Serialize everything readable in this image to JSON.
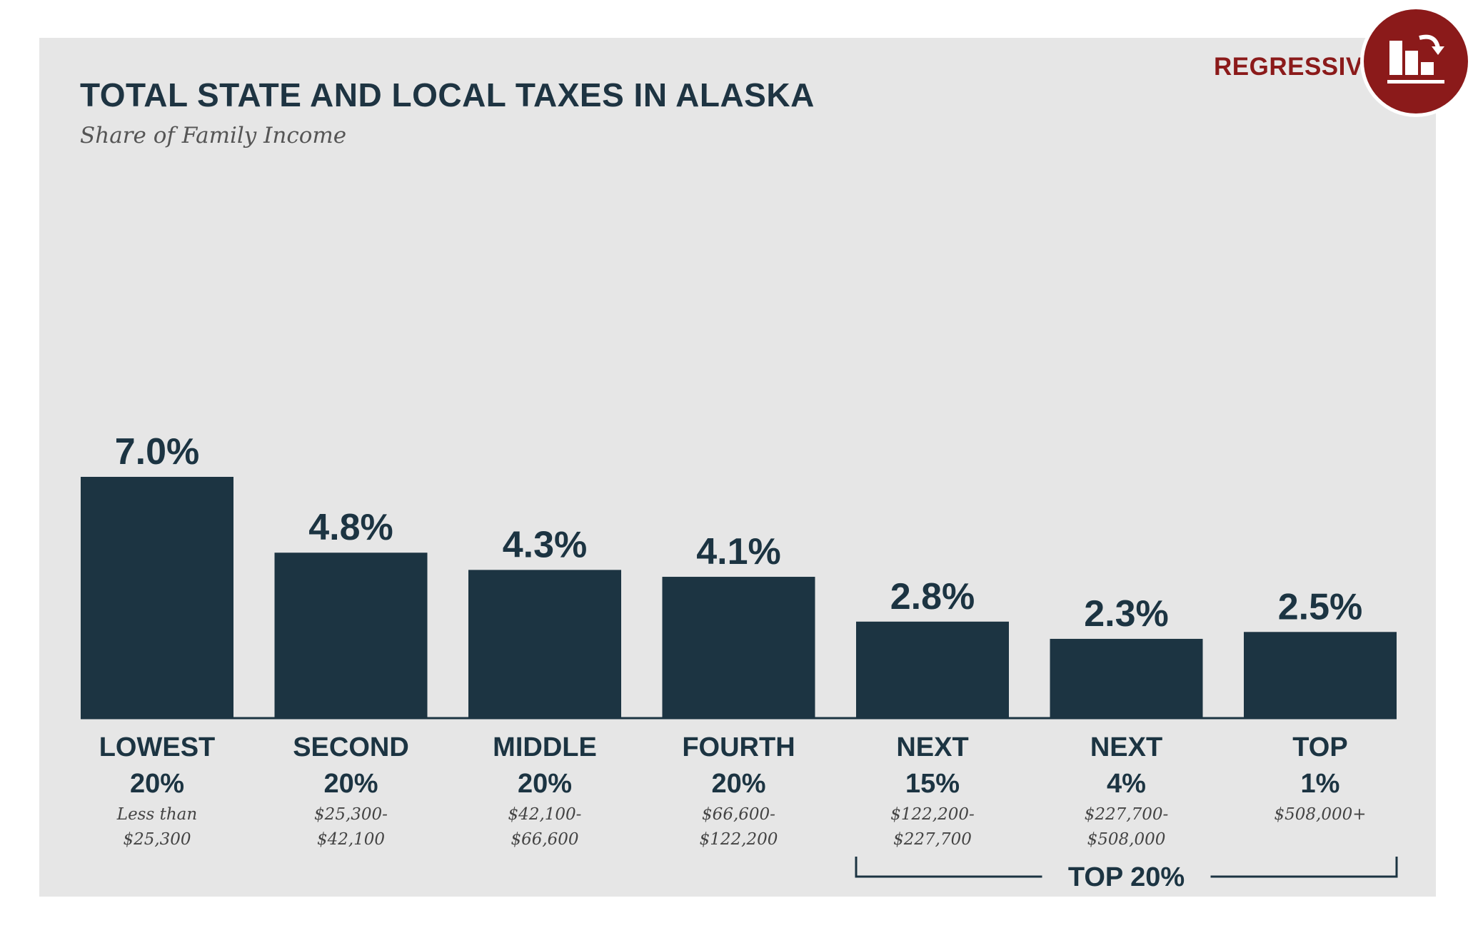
{
  "badge": {
    "label": "REGRESSIVE",
    "icon": "regressive-chart-icon",
    "color": "#8b1a1a"
  },
  "colors": {
    "bar": "#1c3442",
    "panel": "#e6e6e6",
    "accent": "#8b1a1a"
  },
  "chart_data": {
    "type": "bar",
    "title": "TOTAL STATE AND LOCAL TAXES IN ALASKA",
    "subtitle": "Share of Family Income",
    "categories": [
      {
        "name": [
          "LOWEST",
          "20%"
        ],
        "range": [
          "Less than",
          "$25,300"
        ]
      },
      {
        "name": [
          "SECOND",
          "20%"
        ],
        "range": [
          "$25,300-",
          "$42,100"
        ]
      },
      {
        "name": [
          "MIDDLE",
          "20%"
        ],
        "range": [
          "$42,100-",
          "$66,600"
        ]
      },
      {
        "name": [
          "FOURTH",
          "20%"
        ],
        "range": [
          "$66,600-",
          "$122,200"
        ]
      },
      {
        "name": [
          "NEXT",
          "15%"
        ],
        "range": [
          "$122,200-",
          "$227,700"
        ]
      },
      {
        "name": [
          "NEXT",
          "4%"
        ],
        "range": [
          "$227,700-",
          "$508,000"
        ]
      },
      {
        "name": [
          "TOP",
          "1%"
        ],
        "range": [
          "$508,000+"
        ]
      }
    ],
    "values": [
      7.0,
      4.8,
      4.3,
      4.1,
      2.8,
      2.3,
      2.5
    ],
    "value_labels": [
      "7.0%",
      "4.8%",
      "4.3%",
      "4.1%",
      "2.8%",
      "2.3%",
      "2.5%"
    ],
    "unit": "%",
    "ylim": [
      0,
      7.0
    ],
    "grid": false,
    "group_bracket": {
      "label": "TOP 20%",
      "from_index": 4,
      "to_index": 6
    }
  }
}
